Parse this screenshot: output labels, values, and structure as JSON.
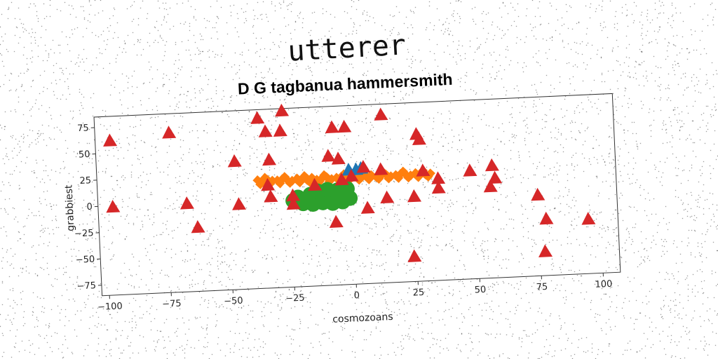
{
  "page_title": "utterer",
  "chart_data": {
    "type": "scatter",
    "title": "D G tagbanua hammersmith",
    "xlabel": "cosmozoans",
    "ylabel": "grabbiest",
    "xlim": [
      -103,
      107
    ],
    "ylim": [
      -85,
      85
    ],
    "xticks": [
      -100,
      -75,
      -50,
      -25,
      0,
      25,
      50,
      75,
      100
    ],
    "yticks": [
      -75,
      -50,
      -25,
      0,
      25,
      50,
      75
    ],
    "grid": false,
    "series": [
      {
        "marker": "diamond",
        "color": "#ff7f0e",
        "points": [
          [
            -38,
            18
          ],
          [
            -36,
            16
          ],
          [
            -34,
            18
          ],
          [
            -32,
            17
          ],
          [
            -30,
            17
          ],
          [
            -28,
            18
          ],
          [
            -26,
            17
          ],
          [
            -24,
            16
          ],
          [
            -22,
            18
          ],
          [
            -20,
            17
          ],
          [
            -18,
            16
          ],
          [
            -16,
            18
          ],
          [
            -14,
            16
          ],
          [
            -12,
            17
          ],
          [
            -10,
            18
          ],
          [
            -8,
            16
          ],
          [
            -6,
            17
          ],
          [
            -4,
            18
          ],
          [
            -2,
            16
          ],
          [
            0,
            17
          ],
          [
            2,
            18
          ],
          [
            4,
            16
          ],
          [
            6,
            17
          ],
          [
            8,
            18
          ],
          [
            10,
            16
          ],
          [
            12,
            17
          ],
          [
            14,
            18
          ],
          [
            16,
            16
          ],
          [
            18,
            17
          ],
          [
            20,
            18
          ],
          [
            22,
            17
          ],
          [
            24,
            16
          ],
          [
            26,
            18
          ],
          [
            28,
            17
          ],
          [
            30,
            16
          ],
          [
            32,
            17
          ],
          [
            -37,
            14
          ],
          [
            -33,
            14
          ],
          [
            -29,
            14
          ],
          [
            -25,
            14
          ],
          [
            -21,
            14
          ],
          [
            -17,
            14
          ],
          [
            -13,
            14
          ],
          [
            -9,
            14
          ],
          [
            -5,
            14
          ],
          [
            -1,
            14
          ],
          [
            3,
            14
          ],
          [
            7,
            14
          ],
          [
            11,
            14
          ],
          [
            15,
            14
          ],
          [
            19,
            14
          ],
          [
            23,
            14
          ],
          [
            27,
            14
          ],
          [
            31,
            14
          ],
          [
            -35,
            20
          ],
          [
            -27,
            20
          ],
          [
            -19,
            20
          ],
          [
            -11,
            20
          ],
          [
            -3,
            20
          ],
          [
            5,
            20
          ],
          [
            13,
            20
          ],
          [
            21,
            20
          ],
          [
            29,
            20
          ]
        ]
      },
      {
        "marker": "circle",
        "color": "#2ca02c",
        "points": [
          [
            -22,
            0
          ],
          [
            -19,
            -3
          ],
          [
            -17,
            2
          ],
          [
            -15,
            -5
          ],
          [
            -13,
            1
          ],
          [
            -11,
            -2
          ],
          [
            -9,
            4
          ],
          [
            -7,
            -4
          ],
          [
            -5,
            0
          ],
          [
            -3,
            3
          ],
          [
            -1,
            -3
          ],
          [
            -20,
            -6
          ],
          [
            -16,
            -7
          ],
          [
            -12,
            -6
          ],
          [
            -8,
            -7
          ],
          [
            -4,
            -6
          ],
          [
            -14,
            5
          ],
          [
            -10,
            6
          ],
          [
            -6,
            5
          ],
          [
            -2,
            6
          ],
          [
            -18,
            -1
          ],
          [
            -24,
            -3
          ]
        ]
      },
      {
        "marker": "triangle",
        "color": "#1f77b4",
        "points": [
          [
            -1,
            24
          ],
          [
            2,
            24
          ],
          [
            4,
            25
          ]
        ]
      },
      {
        "marker": "triangle",
        "color": "#d62728",
        "points": [
          [
            -97,
            62
          ],
          [
            -73,
            67
          ],
          [
            -37,
            77
          ],
          [
            -34,
            64
          ],
          [
            -28,
            64
          ],
          [
            -27,
            83
          ],
          [
            -7,
            65
          ],
          [
            -2,
            65
          ],
          [
            13,
            75
          ],
          [
            27,
            55
          ],
          [
            28,
            50
          ],
          [
            -47,
            37
          ],
          [
            -33,
            37
          ],
          [
            -9,
            38
          ],
          [
            -5,
            35
          ],
          [
            5,
            26
          ],
          [
            12,
            23
          ],
          [
            29,
            20
          ],
          [
            35,
            12
          ],
          [
            48,
            18
          ],
          [
            57,
            22
          ],
          [
            58,
            10
          ],
          [
            -34,
            13
          ],
          [
            -33,
            2
          ],
          [
            -24,
            2
          ],
          [
            -15,
            11
          ],
          [
            -4,
            15
          ],
          [
            0,
            18
          ],
          [
            -46,
            -4
          ],
          [
            -24,
            -6
          ],
          [
            -67,
            -1
          ],
          [
            -97,
            -1
          ],
          [
            -63,
            -24
          ],
          [
            -7,
            -25
          ],
          [
            6,
            -13
          ],
          [
            14,
            -4
          ],
          [
            25,
            -4
          ],
          [
            35,
            3
          ],
          [
            56,
            2
          ],
          [
            75,
            -8
          ],
          [
            78,
            -31
          ],
          [
            95,
            -33
          ],
          [
            24,
            -61
          ],
          [
            77,
            -62
          ]
        ]
      }
    ]
  },
  "colors": {
    "background": "#ffffff",
    "axes": "#333333"
  }
}
